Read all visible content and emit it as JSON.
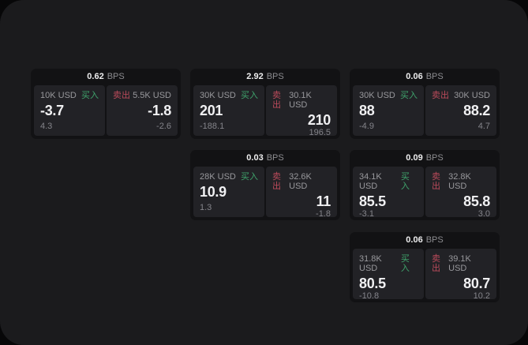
{
  "labels": {
    "bps_unit": "BPS",
    "buy": "买入",
    "sell": "卖出"
  },
  "colors": {
    "outer_bg": "#070708",
    "panel_bg": "#1b1b1d",
    "card_bg": "#121214",
    "tile_bg": "#222226",
    "buy_green": "#3fa46c",
    "sell_red": "#bb4b5b",
    "primary_text": "#f0f0f2",
    "muted_text": "#98989c"
  },
  "cards": [
    {
      "bps": "0.62",
      "buy": {
        "amount": "10K USD",
        "price": "-3.7",
        "delta": "4.3"
      },
      "sell": {
        "amount": "5.5K USD",
        "price": "-1.8",
        "delta": "-2.6"
      }
    },
    {
      "bps": "2.92",
      "buy": {
        "amount": "30K USD",
        "price": "201",
        "delta": "-188.1"
      },
      "sell": {
        "amount": "30.1K USD",
        "price": "210",
        "delta": "196.5"
      }
    },
    {
      "bps": "0.06",
      "buy": {
        "amount": "30K USD",
        "price": "88",
        "delta": "-4.9"
      },
      "sell": {
        "amount": "30K USD",
        "price": "88.2",
        "delta": "4.7"
      }
    },
    {
      "bps": "0.03",
      "buy": {
        "amount": "28K USD",
        "price": "10.9",
        "delta": "1.3"
      },
      "sell": {
        "amount": "32.6K USD",
        "price": "11",
        "delta": "-1.8"
      }
    },
    {
      "bps": "0.09",
      "buy": {
        "amount": "34.1K USD",
        "price": "85.5",
        "delta": "-3.1"
      },
      "sell": {
        "amount": "32.8K USD",
        "price": "85.8",
        "delta": "3.0"
      }
    },
    {
      "bps": "0.06",
      "buy": {
        "amount": "31.8K USD",
        "price": "80.5",
        "delta": "-10.8"
      },
      "sell": {
        "amount": "39.1K USD",
        "price": "80.7",
        "delta": "10.2"
      }
    }
  ]
}
